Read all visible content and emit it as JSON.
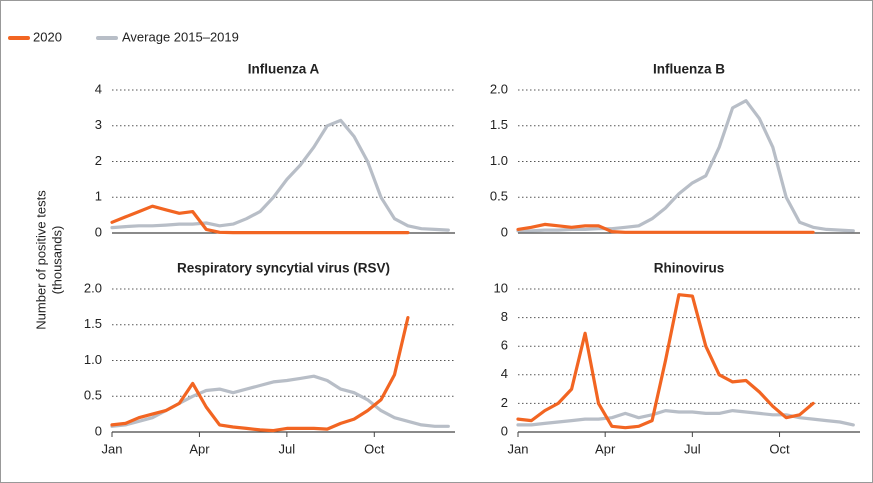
{
  "legend": {
    "position": "top-left"
  },
  "ylabel": [
    "Number of positive tests",
    "(thousands)"
  ],
  "chart_data": [
    {
      "type": "line",
      "title": "Influenza A",
      "xlim": [
        1,
        52
      ],
      "ylim": [
        0,
        4
      ],
      "yticks": [
        0,
        1,
        2,
        3,
        4
      ],
      "grid": true,
      "x": [
        1,
        3,
        5,
        7,
        9,
        11,
        13,
        15,
        17,
        19,
        21,
        23,
        25,
        27,
        29,
        31,
        33,
        35,
        37,
        39,
        41,
        43,
        45,
        47,
        49,
        51
      ],
      "series": [
        {
          "name": "2020",
          "color": "#f26522",
          "values": [
            0.3,
            0.45,
            0.6,
            0.75,
            0.65,
            0.55,
            0.6,
            0.1,
            0.02,
            0.01,
            0.01,
            0.01,
            0.01,
            0.01,
            0.01,
            0.01,
            0.01,
            0.01,
            0.01,
            0.01,
            0.01,
            0.01,
            0.01,
            null,
            null,
            null
          ]
        },
        {
          "name": "Average 2015–2019",
          "color": "#b8bec7",
          "values": [
            0.15,
            0.18,
            0.2,
            0.2,
            0.22,
            0.25,
            0.25,
            0.28,
            0.2,
            0.25,
            0.4,
            0.6,
            1.0,
            1.5,
            1.9,
            2.4,
            3.0,
            3.15,
            2.7,
            2.0,
            1.0,
            0.4,
            0.2,
            0.12,
            0.1,
            0.08
          ]
        }
      ]
    },
    {
      "type": "line",
      "title": "Influenza B",
      "xlim": [
        1,
        52
      ],
      "ylim": [
        0,
        2
      ],
      "yticks": [
        0,
        0.5,
        {
          "value": 1,
          "label": "1.0"
        },
        1.5,
        {
          "value": 2,
          "label": "2.0"
        }
      ],
      "grid": true,
      "x": [
        1,
        3,
        5,
        7,
        9,
        11,
        13,
        15,
        17,
        19,
        21,
        23,
        25,
        27,
        29,
        31,
        33,
        35,
        37,
        39,
        41,
        43,
        45,
        47,
        49,
        51
      ],
      "series": [
        {
          "name": "2020",
          "color": "#f26522",
          "values": [
            0.05,
            0.08,
            0.12,
            0.1,
            0.08,
            0.1,
            0.1,
            0.02,
            0.01,
            0.01,
            0.01,
            0.01,
            0.01,
            0.01,
            0.01,
            0.01,
            0.01,
            0.01,
            0.01,
            0.01,
            0.01,
            0.01,
            0.01,
            null,
            null,
            null
          ]
        },
        {
          "name": "Average 2015–2019",
          "color": "#b8bec7",
          "values": [
            0.03,
            0.03,
            0.04,
            0.04,
            0.05,
            0.05,
            0.06,
            0.06,
            0.08,
            0.1,
            0.2,
            0.35,
            0.55,
            0.7,
            0.8,
            1.2,
            1.75,
            1.85,
            1.6,
            1.2,
            0.5,
            0.15,
            0.08,
            0.05,
            0.04,
            0.03
          ]
        }
      ]
    },
    {
      "type": "line",
      "title": "Respiratory syncytial virus (RSV)",
      "xlim": [
        1,
        52
      ],
      "ylim": [
        0,
        2
      ],
      "yticks": [
        0,
        0.5,
        {
          "value": 1,
          "label": "1.0"
        },
        1.5,
        {
          "value": 2,
          "label": "2.0"
        }
      ],
      "grid": true,
      "xticks": [
        {
          "value": 1,
          "label": "Jan"
        },
        {
          "value": 14,
          "label": "Apr"
        },
        {
          "value": 27,
          "label": "Jul"
        },
        {
          "value": 40,
          "label": "Oct"
        }
      ],
      "x": [
        1,
        3,
        5,
        7,
        9,
        11,
        13,
        15,
        17,
        19,
        21,
        23,
        25,
        27,
        29,
        31,
        33,
        35,
        37,
        39,
        41,
        43,
        45,
        47,
        49,
        51
      ],
      "series": [
        {
          "name": "2020",
          "color": "#f26522",
          "values": [
            0.1,
            0.12,
            0.2,
            0.25,
            0.3,
            0.4,
            0.68,
            0.35,
            0.1,
            0.07,
            0.05,
            0.03,
            0.02,
            0.05,
            0.05,
            0.05,
            0.04,
            0.12,
            0.18,
            0.3,
            0.45,
            0.8,
            1.6,
            null,
            null,
            null
          ]
        },
        {
          "name": "Average 2015–2019",
          "color": "#b8bec7",
          "values": [
            0.08,
            0.1,
            0.15,
            0.2,
            0.3,
            0.4,
            0.5,
            0.58,
            0.6,
            0.55,
            0.6,
            0.65,
            0.7,
            0.72,
            0.75,
            0.78,
            0.72,
            0.6,
            0.55,
            0.45,
            0.3,
            0.2,
            0.15,
            0.1,
            0.08,
            0.08
          ]
        }
      ]
    },
    {
      "type": "line",
      "title": "Rhinovirus",
      "xlim": [
        1,
        52
      ],
      "ylim": [
        0,
        10
      ],
      "yticks": [
        0,
        2,
        4,
        6,
        8,
        10
      ],
      "grid": true,
      "xticks": [
        {
          "value": 1,
          "label": "Jan"
        },
        {
          "value": 14,
          "label": "Apr"
        },
        {
          "value": 27,
          "label": "Jul"
        },
        {
          "value": 40,
          "label": "Oct"
        }
      ],
      "x": [
        1,
        3,
        5,
        7,
        9,
        11,
        13,
        15,
        17,
        19,
        21,
        23,
        25,
        27,
        29,
        31,
        33,
        35,
        37,
        39,
        41,
        43,
        45,
        47,
        49,
        51
      ],
      "series": [
        {
          "name": "2020",
          "color": "#f26522",
          "values": [
            0.9,
            0.8,
            1.5,
            2.0,
            3.0,
            6.9,
            2.0,
            0.4,
            0.3,
            0.4,
            0.8,
            5.0,
            9.6,
            9.5,
            6.0,
            4.0,
            3.5,
            3.6,
            2.8,
            1.8,
            1.0,
            1.2,
            2.0,
            null,
            null,
            null
          ]
        },
        {
          "name": "Average 2015–2019",
          "color": "#b8bec7",
          "values": [
            0.5,
            0.5,
            0.6,
            0.7,
            0.8,
            0.9,
            0.9,
            1.0,
            1.3,
            1.0,
            1.2,
            1.5,
            1.4,
            1.4,
            1.3,
            1.3,
            1.5,
            1.4,
            1.3,
            1.2,
            1.2,
            1.0,
            0.9,
            0.8,
            0.7,
            0.5
          ]
        }
      ]
    }
  ]
}
